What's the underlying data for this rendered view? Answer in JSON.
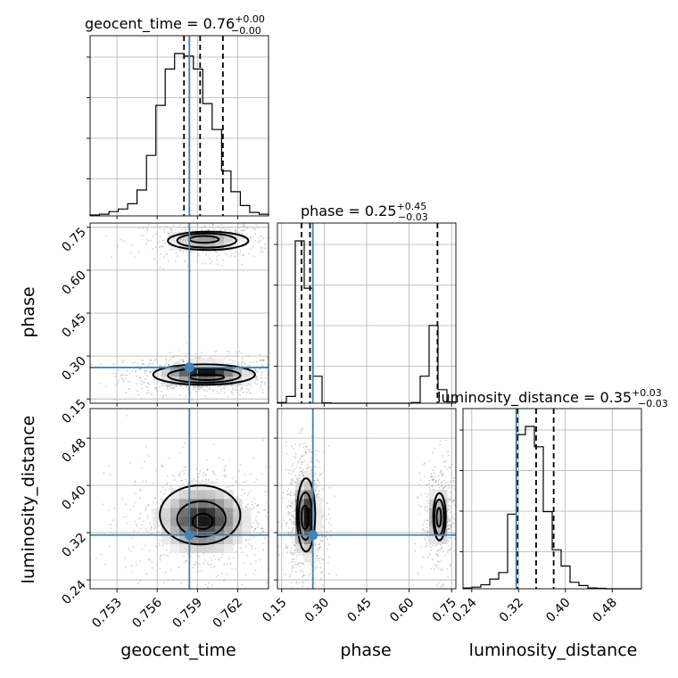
{
  "chart_data": {
    "type": "corner",
    "parameters": [
      "geocent_time",
      "phase",
      "luminosity_distance"
    ],
    "titles": {
      "geocent_time": {
        "label": "geocent_time",
        "value": "0.76",
        "upper": "+0.00",
        "lower": "−0.00"
      },
      "phase": {
        "label": "phase",
        "value": "0.25",
        "upper": "+0.45",
        "lower": "−0.03"
      },
      "luminosity_distance": {
        "label": "luminosity_distance",
        "value": "0.35",
        "upper": "+0.03",
        "lower": "−0.03"
      }
    },
    "axes": {
      "geocent_time": {
        "range": [
          0.751,
          0.7643
        ],
        "ticks": [
          0.753,
          0.756,
          0.759,
          0.762
        ],
        "tick_labels": [
          "0.753",
          "0.756",
          "0.759",
          "0.762"
        ]
      },
      "phase": {
        "range": [
          0.135,
          0.765
        ],
        "ticks": [
          0.15,
          0.3,
          0.45,
          0.6,
          0.75
        ],
        "tick_labels": [
          "0.15",
          "0.30",
          "0.45",
          "0.60",
          "0.75"
        ]
      },
      "luminosity_distance": {
        "range": [
          0.225,
          0.53
        ],
        "ticks": [
          0.24,
          0.32,
          0.4,
          0.48
        ],
        "tick_labels": [
          "0.24",
          "0.32",
          "0.40",
          "0.48"
        ]
      }
    },
    "truths": {
      "geocent_time": 0.7584,
      "phase": 0.26,
      "luminosity_distance": 0.316
    },
    "quantiles": {
      "geocent_time": [
        0.758,
        0.7592,
        0.7609
      ],
      "phase": [
        0.22,
        0.25,
        0.7
      ],
      "luminosity_distance": [
        0.318,
        0.35,
        0.38
      ]
    },
    "histograms": {
      "geocent_time": {
        "edges": [
          0.751,
          0.7517,
          0.7524,
          0.7531,
          0.7538,
          0.7545,
          0.7552,
          0.7559,
          0.7566,
          0.7573,
          0.758,
          0.7587,
          0.7594,
          0.7601,
          0.7608,
          0.7615,
          0.7622,
          0.7629,
          0.7636,
          0.7643
        ],
        "counts": [
          1,
          2,
          5,
          8,
          14,
          30,
          70,
          128,
          170,
          188,
          185,
          170,
          130,
          100,
          52,
          28,
          12,
          4,
          2
        ]
      },
      "phase": {
        "edges": [
          0.135,
          0.1665,
          0.198,
          0.2295,
          0.261,
          0.2925,
          0.324,
          0.3555,
          0.387,
          0.4185,
          0.45,
          0.4815,
          0.513,
          0.5445,
          0.576,
          0.6075,
          0.639,
          0.6705,
          0.702,
          0.7335,
          0.765
        ],
        "counts": [
          1,
          10,
          240,
          170,
          40,
          0.5,
          0,
          0,
          0,
          0,
          0,
          0,
          0,
          0,
          0,
          1,
          40,
          115,
          20,
          2
        ]
      },
      "luminosity_distance": {
        "edges": [
          0.225,
          0.2403,
          0.2555,
          0.2708,
          0.286,
          0.3013,
          0.3165,
          0.3318,
          0.347,
          0.3623,
          0.3775,
          0.3928,
          0.408,
          0.4233,
          0.4385,
          0.4538,
          0.469,
          0.4843,
          0.4995,
          0.5148,
          0.53
        ],
        "counts": [
          1,
          2,
          5,
          12,
          20,
          92,
          190,
          200,
          175,
          95,
          48,
          28,
          8,
          4,
          1,
          0.5,
          0,
          0,
          0,
          0
        ]
      }
    },
    "densities": {
      "phase_vs_geocent_time": {
        "blobs": [
          {
            "x": 0.7595,
            "y": 0.235,
            "sx": 0.00155,
            "sy": 0.018,
            "w": 1.0
          },
          {
            "x": 0.7596,
            "y": 0.705,
            "sx": 0.0013,
            "sy": 0.018,
            "w": 0.45
          }
        ],
        "contours": [
          {
            "level": "inner",
            "blobs": [
              {
                "x": 0.7597,
                "y": 0.226,
                "rx": 0.0013,
                "ry": 0.01
              },
              {
                "x": 0.7595,
                "y": 0.708,
                "rx": 0.0011,
                "ry": 0.012
              }
            ]
          },
          {
            "level": "middle",
            "blobs": [
              {
                "x": 0.7595,
                "y": 0.232,
                "rx": 0.0027,
                "ry": 0.025
              },
              {
                "x": 0.7597,
                "y": 0.704,
                "rx": 0.0022,
                "ry": 0.025
              }
            ]
          },
          {
            "level": "outer",
            "blobs": [
              {
                "x": 0.7595,
                "y": 0.235,
                "rx": 0.0038,
                "ry": 0.036
              },
              {
                "x": 0.7598,
                "y": 0.703,
                "rx": 0.003,
                "ry": 0.032
              }
            ]
          }
        ]
      },
      "luminosity_distance_vs_geocent_time": {
        "blobs": [
          {
            "x": 0.7594,
            "y": 0.342,
            "sx": 0.0015,
            "sy": 0.026,
            "w": 1.0
          }
        ],
        "contours": [
          {
            "level": "inner",
            "blobs": [
              {
                "x": 0.7594,
                "y": 0.339,
                "rx": 0.00075,
                "ry": 0.013
              }
            ]
          },
          {
            "level": "middle",
            "blobs": [
              {
                "x": 0.7593,
                "y": 0.343,
                "rx": 0.0018,
                "ry": 0.03
              }
            ]
          },
          {
            "level": "outer",
            "blobs": [
              {
                "x": 0.7592,
                "y": 0.35,
                "rx": 0.003,
                "ry": 0.05
              }
            ]
          }
        ]
      },
      "luminosity_distance_vs_phase": {
        "blobs": [
          {
            "x": 0.235,
            "y": 0.347,
            "sx": 0.018,
            "sy": 0.03,
            "w": 1.0
          },
          {
            "x": 0.705,
            "y": 0.345,
            "sx": 0.016,
            "sy": 0.025,
            "w": 0.5
          }
        ],
        "contours": [
          {
            "level": "inner",
            "blobs": [
              {
                "x": 0.232,
                "y": 0.346,
                "rx": 0.012,
                "ry": 0.02
              },
              {
                "x": 0.705,
                "y": 0.346,
                "rx": 0.008,
                "ry": 0.016
              }
            ]
          },
          {
            "level": "middle",
            "blobs": [
              {
                "x": 0.234,
                "y": 0.348,
                "rx": 0.024,
                "ry": 0.04
              },
              {
                "x": 0.706,
                "y": 0.346,
                "rx": 0.017,
                "ry": 0.03
              }
            ]
          },
          {
            "level": "outer",
            "blobs": [
              {
                "x": 0.236,
                "y": 0.35,
                "rx": 0.032,
                "ry": 0.062
              },
              {
                "x": 0.707,
                "y": 0.347,
                "rx": 0.022,
                "ry": 0.04
              }
            ]
          }
        ]
      }
    },
    "truth_color": "#4682b4",
    "grid": true
  }
}
